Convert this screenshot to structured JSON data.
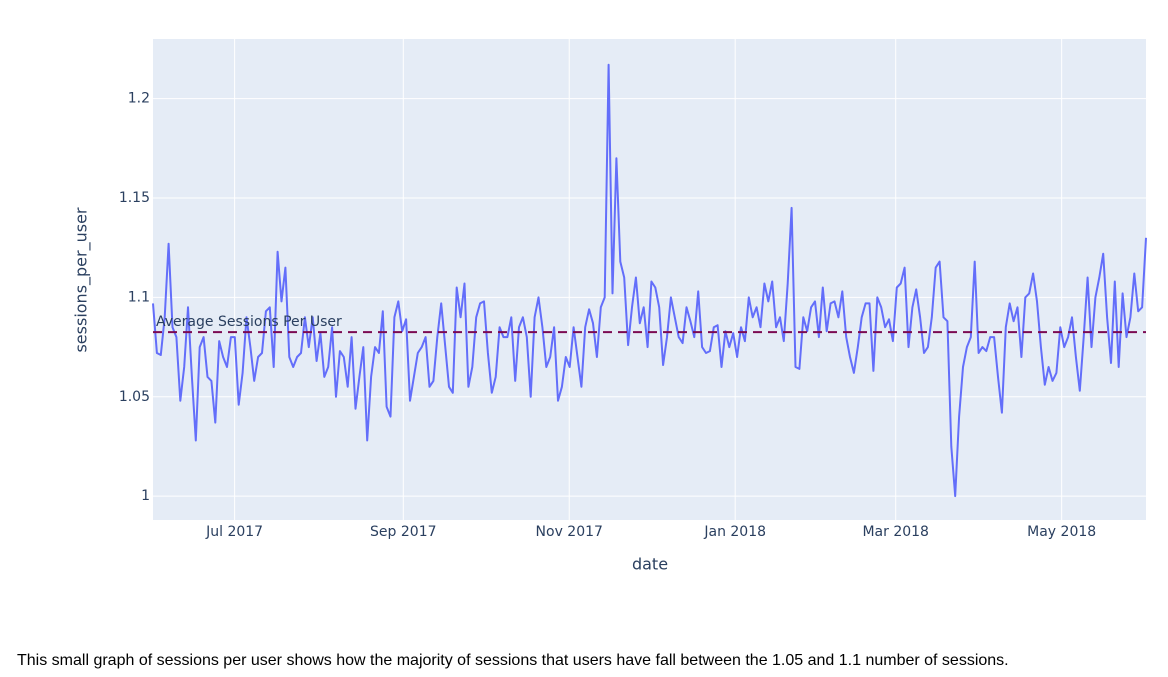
{
  "chart_data": {
    "type": "line",
    "xlabel": "date",
    "ylabel": "sessions_per_user",
    "xlim": [
      "2017-06",
      "2018-06"
    ],
    "xticks": [
      {
        "value": "2017-07",
        "label": "Jul 2017"
      },
      {
        "value": "2017-09",
        "label": "Sep 2017"
      },
      {
        "value": "2017-11",
        "label": "Nov 2017"
      },
      {
        "value": "2018-01",
        "label": "Jan 2018"
      },
      {
        "value": "2018-03",
        "label": "Mar 2018"
      },
      {
        "value": "2018-05",
        "label": "May 2018"
      }
    ],
    "ylim": [
      0.988,
      1.23
    ],
    "yticks": [
      1,
      1.05,
      1.1,
      1.15,
      1.2
    ],
    "grid": true,
    "series": [
      {
        "name": "sessions_per_user",
        "color": "#636efa",
        "values": [
          1.097,
          1.072,
          1.071,
          1.09,
          1.127,
          1.085,
          1.08,
          1.048,
          1.065,
          1.095,
          1.06,
          1.028,
          1.075,
          1.08,
          1.06,
          1.058,
          1.037,
          1.078,
          1.07,
          1.065,
          1.08,
          1.08,
          1.046,
          1.062,
          1.09,
          1.075,
          1.058,
          1.07,
          1.072,
          1.093,
          1.095,
          1.065,
          1.123,
          1.098,
          1.115,
          1.07,
          1.065,
          1.07,
          1.072,
          1.09,
          1.075,
          1.09,
          1.068,
          1.082,
          1.06,
          1.065,
          1.085,
          1.05,
          1.073,
          1.07,
          1.055,
          1.08,
          1.044,
          1.06,
          1.075,
          1.028,
          1.06,
          1.075,
          1.072,
          1.093,
          1.045,
          1.04,
          1.09,
          1.098,
          1.083,
          1.089,
          1.048,
          1.06,
          1.072,
          1.075,
          1.08,
          1.055,
          1.058,
          1.08,
          1.097,
          1.076,
          1.055,
          1.052,
          1.105,
          1.09,
          1.107,
          1.055,
          1.065,
          1.09,
          1.097,
          1.098,
          1.072,
          1.052,
          1.06,
          1.085,
          1.08,
          1.08,
          1.09,
          1.058,
          1.085,
          1.09,
          1.08,
          1.05,
          1.09,
          1.1,
          1.085,
          1.065,
          1.07,
          1.085,
          1.048,
          1.055,
          1.07,
          1.065,
          1.085,
          1.07,
          1.055,
          1.085,
          1.094,
          1.087,
          1.07,
          1.095,
          1.1,
          1.217,
          1.102,
          1.17,
          1.118,
          1.11,
          1.076,
          1.095,
          1.11,
          1.087,
          1.095,
          1.075,
          1.108,
          1.105,
          1.095,
          1.066,
          1.08,
          1.1,
          1.09,
          1.08,
          1.077,
          1.095,
          1.088,
          1.08,
          1.103,
          1.075,
          1.072,
          1.073,
          1.085,
          1.086,
          1.065,
          1.083,
          1.075,
          1.082,
          1.07,
          1.085,
          1.078,
          1.1,
          1.09,
          1.095,
          1.085,
          1.107,
          1.098,
          1.108,
          1.085,
          1.09,
          1.078,
          1.107,
          1.145,
          1.065,
          1.064,
          1.09,
          1.083,
          1.095,
          1.098,
          1.08,
          1.105,
          1.083,
          1.097,
          1.098,
          1.09,
          1.103,
          1.08,
          1.07,
          1.062,
          1.075,
          1.09,
          1.097,
          1.097,
          1.063,
          1.1,
          1.095,
          1.085,
          1.089,
          1.078,
          1.105,
          1.107,
          1.115,
          1.075,
          1.095,
          1.104,
          1.09,
          1.072,
          1.075,
          1.09,
          1.115,
          1.118,
          1.09,
          1.088,
          1.025,
          1.0,
          1.04,
          1.065,
          1.075,
          1.08,
          1.118,
          1.072,
          1.075,
          1.073,
          1.08,
          1.08,
          1.06,
          1.042,
          1.085,
          1.097,
          1.088,
          1.095,
          1.07,
          1.1,
          1.102,
          1.112,
          1.098,
          1.075,
          1.056,
          1.065,
          1.058,
          1.062,
          1.085,
          1.075,
          1.08,
          1.09,
          1.07,
          1.053,
          1.08,
          1.11,
          1.075,
          1.1,
          1.11,
          1.122,
          1.09,
          1.067,
          1.108,
          1.065,
          1.102,
          1.08,
          1.09,
          1.112,
          1.093,
          1.095,
          1.13
        ]
      }
    ],
    "reference_line": {
      "value": 1.0825,
      "label": "Average Sessions Per User",
      "color": "#7b0a52"
    }
  },
  "caption": "This small graph of sessions per user shows how the majority of sessions that users have fall between the 1.05 and 1.1 number of sessions."
}
